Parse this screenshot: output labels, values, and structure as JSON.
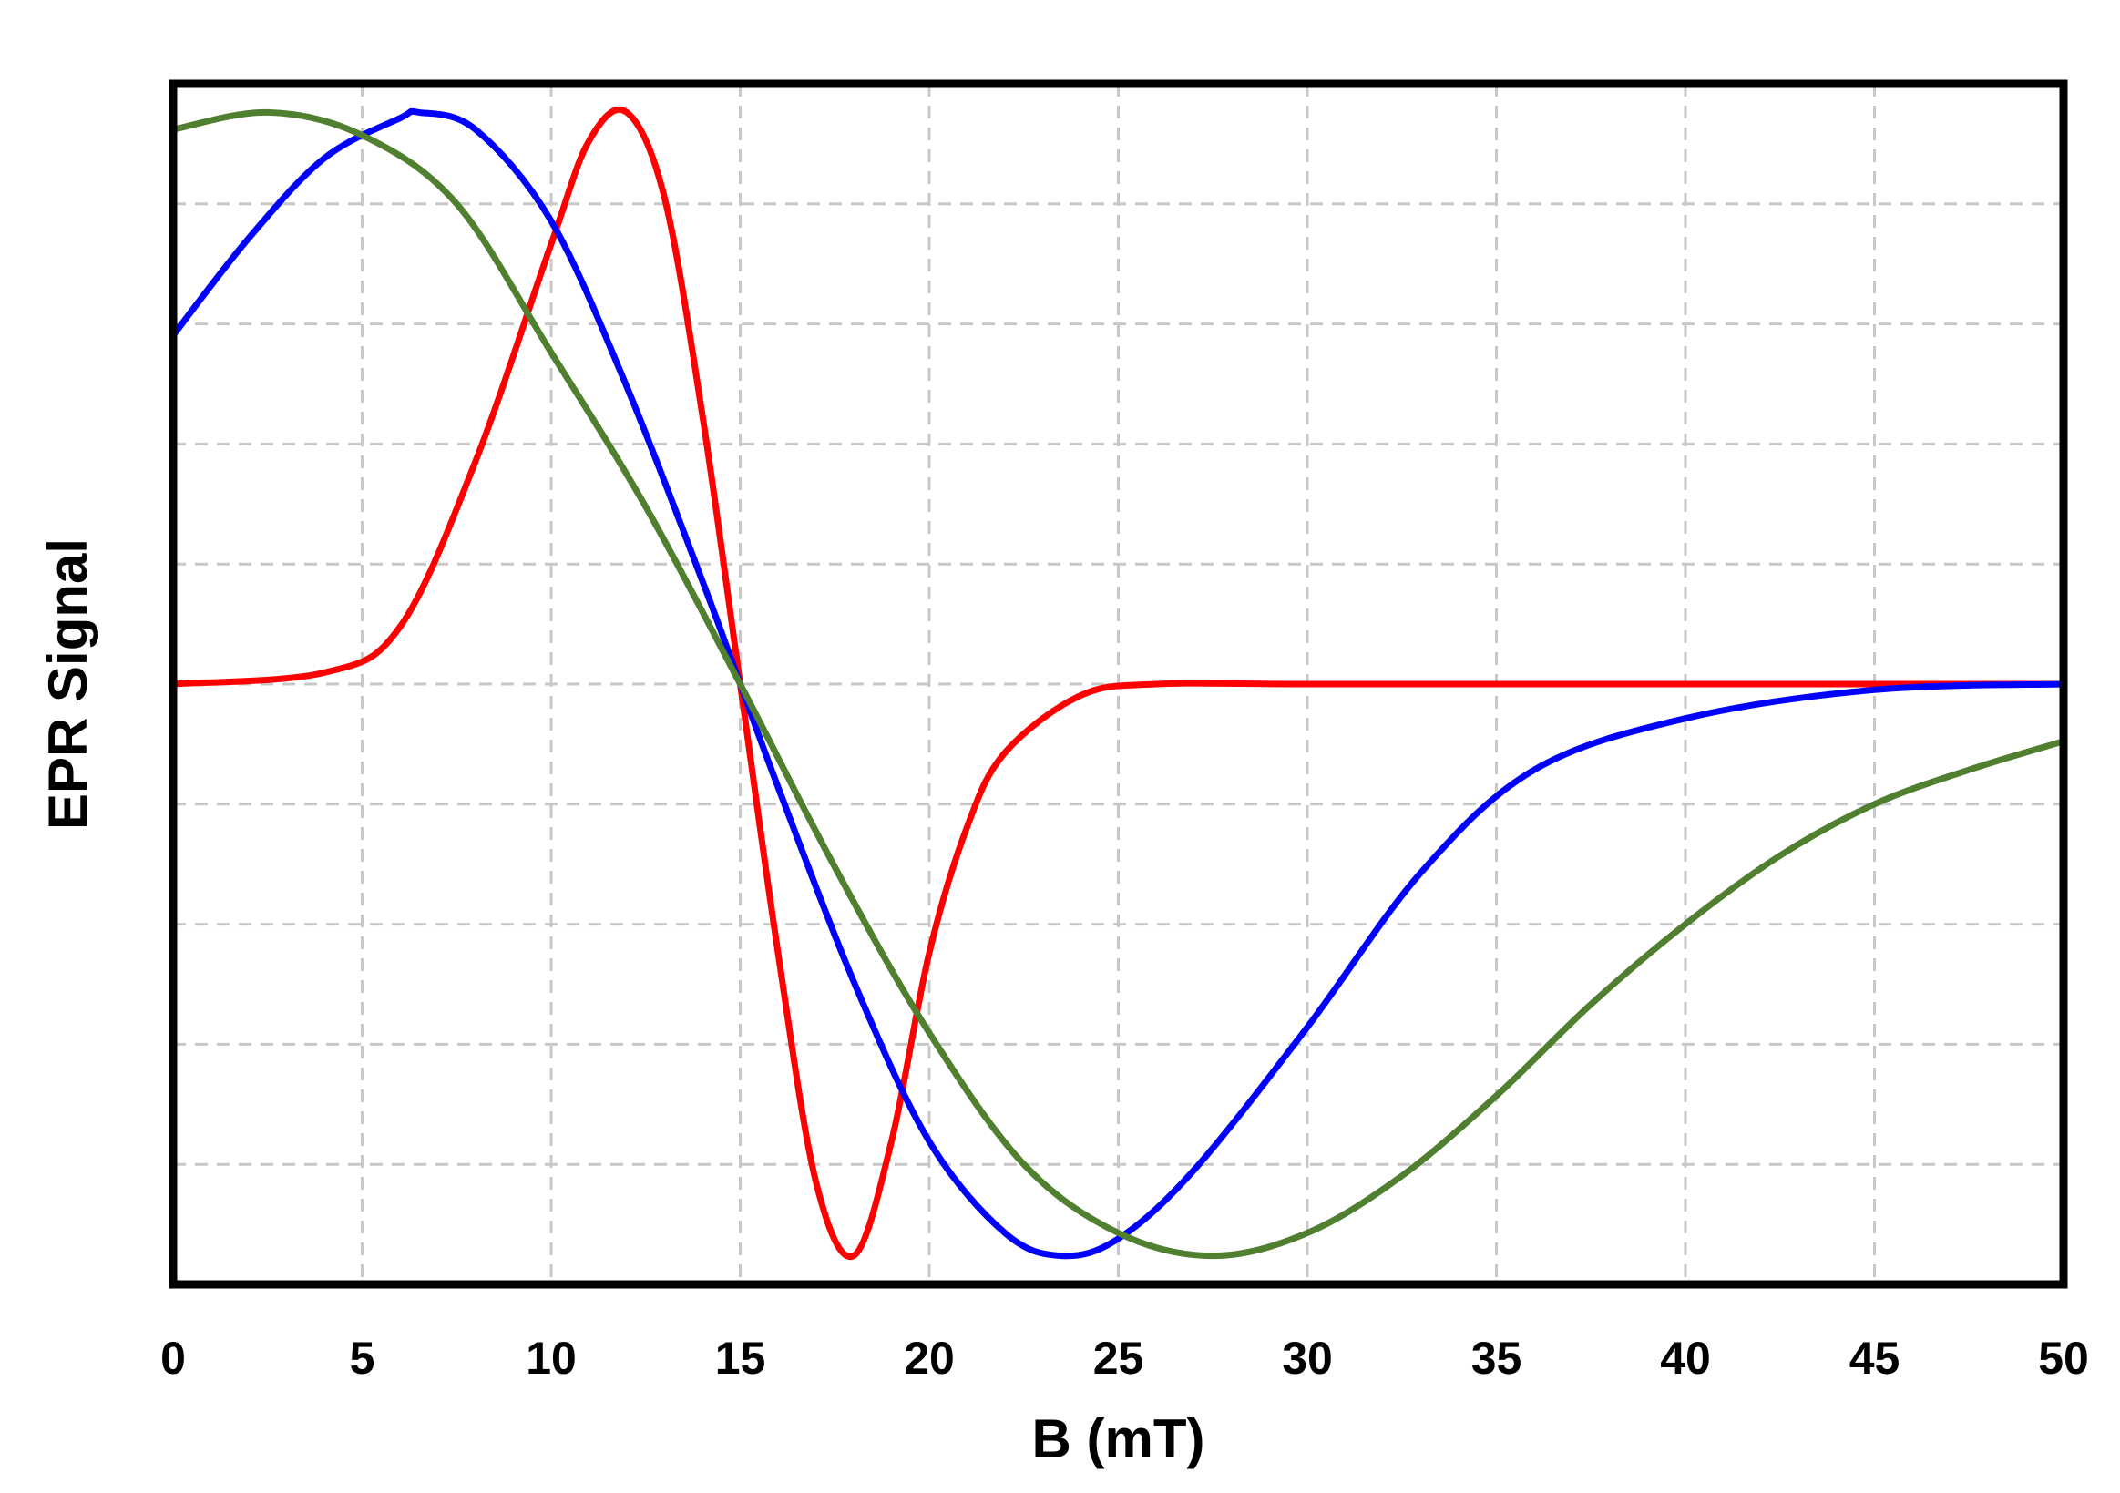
{
  "chart_data": {
    "type": "line",
    "xlabel": "B (mT)",
    "ylabel": "EPR Signal",
    "xlim": [
      0,
      50
    ],
    "ylim": [
      -1.05,
      1.05
    ],
    "x_ticks": [
      "0",
      "5",
      "10",
      "15",
      "20",
      "25",
      "30",
      "35",
      "40",
      "45",
      "50"
    ],
    "grid": true,
    "y_tick_labels_shown": false,
    "series": [
      {
        "color": "#ff0000",
        "x": [
          0,
          4,
          6,
          8,
          10,
          11,
          12,
          13,
          14,
          15,
          16,
          17,
          18,
          19,
          20,
          21,
          22,
          24,
          26,
          30,
          40,
          50
        ],
        "y": [
          0,
          0.02,
          0.1,
          0.39,
          0.77,
          0.95,
          1.0,
          0.85,
          0.47,
          0,
          -0.47,
          -0.87,
          -1.0,
          -0.8,
          -0.47,
          -0.25,
          -0.12,
          -0.02,
          0,
          0,
          0,
          0
        ]
      },
      {
        "color": "#0000ff",
        "x": [
          0,
          2,
          4,
          6,
          6.5,
          8,
          10,
          12,
          14,
          15,
          16,
          18,
          20,
          22,
          23.5,
          25,
          27,
          30,
          33,
          36,
          40,
          45,
          50
        ],
        "y": [
          0.61,
          0.78,
          0.92,
          0.99,
          1.0,
          0.97,
          0.81,
          0.52,
          0.18,
          0,
          -0.18,
          -0.52,
          -0.8,
          -0.96,
          -1.0,
          -0.97,
          -0.85,
          -0.6,
          -0.33,
          -0.15,
          -0.06,
          -0.01,
          0
        ]
      },
      {
        "color": "#4f7f2f",
        "x": [
          0,
          2.5,
          5,
          7.5,
          10,
          12.5,
          15,
          17.5,
          20,
          22.5,
          25,
          27.5,
          30,
          32.5,
          35,
          37.5,
          40,
          42.5,
          45,
          47.5,
          50
        ],
        "y": [
          0.97,
          1.0,
          0.96,
          0.84,
          0.58,
          0.31,
          0,
          -0.32,
          -0.61,
          -0.84,
          -0.96,
          -1.0,
          -0.96,
          -0.86,
          -0.72,
          -0.56,
          -0.42,
          -0.3,
          -0.21,
          -0.15,
          -0.1
        ]
      }
    ]
  }
}
